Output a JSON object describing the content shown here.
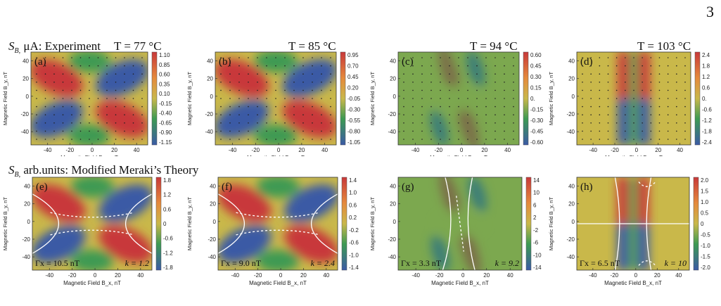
{
  "page_number": "3",
  "row_titles": {
    "experiment": {
      "symbol": "S",
      "subscript": "B,",
      "text": "μA: Experiment"
    },
    "theory": {
      "symbol": "S",
      "subscript": "B,",
      "text": "arb.units: Modified Meraki’s Theory"
    }
  },
  "temperatures": [
    "T = 77 °C",
    "T = 85 °C",
    "T = 94 °C",
    "T = 103 °C"
  ],
  "axes": {
    "xlabel": "Magnetic Field B_x, nT",
    "ylabel": "Magnetic Field B_y, nT"
  },
  "colors": {
    "red": "#c8383a",
    "orange": "#e58a3c",
    "yellow": "#c9b84a",
    "green": "#3d9a53",
    "blue": "#3b5aa5"
  },
  "chart_data": [
    {
      "type": "heatmap",
      "panel": "(a)",
      "row": "experiment",
      "pattern": "quadrupole",
      "x_ticks": [
        "-40",
        "-20",
        "0",
        "20",
        "40"
      ],
      "y_ticks": [
        "40",
        "20",
        "0",
        "-20",
        "-40"
      ],
      "xlim": [
        -55,
        50
      ],
      "ylim": [
        -55,
        50
      ],
      "colorbar": [
        "1.10",
        "0.85",
        "0.60",
        "0.35",
        "0.10",
        "-0.15",
        "-0.40",
        "-0.65",
        "-0.90",
        "-1.15"
      ]
    },
    {
      "type": "heatmap",
      "panel": "(b)",
      "row": "experiment",
      "pattern": "quadrupole",
      "x_ticks": [
        "-40",
        "-20",
        "0",
        "20",
        "40"
      ],
      "y_ticks": [
        "40",
        "20",
        "0",
        "-20",
        "-40"
      ],
      "xlim": [
        -55,
        50
      ],
      "ylim": [
        -55,
        50
      ],
      "colorbar": [
        "0.95",
        "0.70",
        "0.45",
        "0.20",
        "-0.05",
        "-0.30",
        "-0.55",
        "-0.80",
        "-1.05"
      ]
    },
    {
      "type": "heatmap",
      "panel": "(c)",
      "row": "experiment",
      "pattern": "diagonal",
      "x_ticks": [
        "-40",
        "-20",
        "0",
        "20",
        "40"
      ],
      "y_ticks": [
        "40",
        "20",
        "0",
        "-20",
        "-40"
      ],
      "xlim": [
        -55,
        50
      ],
      "ylim": [
        -55,
        50
      ],
      "colorbar": [
        "0.60",
        "0.45",
        "0.30",
        "0.15",
        "0.",
        "-0.15",
        "-0.30",
        "-0.45",
        "-0.60"
      ]
    },
    {
      "type": "heatmap",
      "panel": "(d)",
      "row": "experiment",
      "pattern": "vertical",
      "x_ticks": [
        "-40",
        "-20",
        "0",
        "20",
        "40"
      ],
      "y_ticks": [
        "40",
        "20",
        "0",
        "-20",
        "-40"
      ],
      "xlim": [
        -55,
        50
      ],
      "ylim": [
        -55,
        50
      ],
      "colorbar": [
        "2.4",
        "1.8",
        "1.2",
        "0.6",
        "0.",
        "-0.6",
        "-1.2",
        "-1.8",
        "-2.4"
      ]
    },
    {
      "type": "heatmap",
      "panel": "(e)",
      "row": "theory",
      "pattern": "quadrupole",
      "x_ticks": [
        "-40",
        "-20",
        "0",
        "20",
        "40"
      ],
      "y_ticks": [
        "40",
        "20",
        "0",
        "-20",
        "-40"
      ],
      "xlim": [
        -55,
        50
      ],
      "ylim": [
        -55,
        50
      ],
      "colorbar": [
        "1.8",
        "1.2",
        "0.6",
        "0",
        "-0.6",
        "-1.2",
        "-1.8"
      ],
      "gamma_x": "Γx = 10.5 nT",
      "k": "k = 1.2"
    },
    {
      "type": "heatmap",
      "panel": "(f)",
      "row": "theory",
      "pattern": "quadrupole",
      "x_ticks": [
        "-40",
        "-20",
        "0",
        "20",
        "40"
      ],
      "y_ticks": [
        "40",
        "20",
        "0",
        "-20",
        "-40"
      ],
      "xlim": [
        -55,
        50
      ],
      "ylim": [
        -55,
        50
      ],
      "colorbar": [
        "1.4",
        "1.0",
        "0.6",
        "0.2",
        "-0.2",
        "-0.6",
        "-1.0",
        "-1.4"
      ],
      "gamma_x": "Γx = 9.0 nT",
      "k": "k = 2.4"
    },
    {
      "type": "heatmap",
      "panel": "(g)",
      "row": "theory",
      "pattern": "diagonal",
      "x_ticks": [
        "-40",
        "-20",
        "0",
        "20",
        "40"
      ],
      "y_ticks": [
        "40",
        "20",
        "0",
        "-20",
        "-40"
      ],
      "xlim": [
        -55,
        50
      ],
      "ylim": [
        -55,
        50
      ],
      "colorbar": [
        "14",
        "10",
        "6",
        "2",
        "-2",
        "-6",
        "-10",
        "-14"
      ],
      "gamma_x": "Γx = 3.3 nT",
      "k": "k = 9.2"
    },
    {
      "type": "heatmap",
      "panel": "(h)",
      "row": "theory",
      "pattern": "vertical",
      "x_ticks": [
        "-40",
        "-20",
        "0",
        "20",
        "40"
      ],
      "y_ticks": [
        "40",
        "20",
        "0",
        "-20",
        "-40"
      ],
      "xlim": [
        -55,
        50
      ],
      "ylim": [
        -55,
        50
      ],
      "colorbar": [
        "2.0",
        "1.5",
        "1.0",
        "0.5",
        "0",
        "-0.5",
        "-1.0",
        "-1.5",
        "-2.0"
      ],
      "gamma_x": "Γx = 6.5 nT",
      "k": "k = 10"
    }
  ]
}
